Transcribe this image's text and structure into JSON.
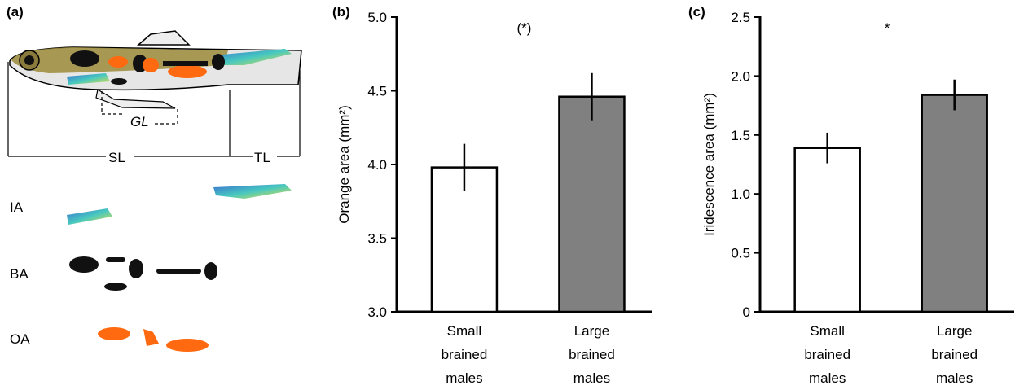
{
  "panel_a": {
    "label": "(a)",
    "gl": "GL",
    "sl": "SL",
    "tl": "TL",
    "ia": "IA",
    "ba": "BA",
    "oa": "OA"
  },
  "chart_data": [
    {
      "type": "bar",
      "panel_label": "(b)",
      "y_label": "Orange area (mm²)",
      "annotation": "(*)",
      "categories": [
        "Small brained males",
        "Large brained males"
      ],
      "values": [
        3.98,
        4.46
      ],
      "errors": [
        0.16,
        0.16
      ],
      "colors": [
        "#ffffff",
        "#808080"
      ],
      "ylim": [
        3.0,
        5.0
      ],
      "yticks": [
        {
          "value": 3,
          "label": "3.0"
        },
        3.5,
        {
          "value": 4,
          "label": "4.0"
        },
        4.5,
        {
          "value": 5,
          "label": "5.0"
        }
      ]
    },
    {
      "type": "bar",
      "panel_label": "(c)",
      "y_label": "Iridescence area (mm²)",
      "annotation": "*",
      "categories": [
        "Small brained males",
        "Large brained males"
      ],
      "values": [
        1.39,
        1.84
      ],
      "errors": [
        0.13,
        0.13
      ],
      "colors": [
        "#ffffff",
        "#808080"
      ],
      "ylim": [
        0,
        2.5
      ],
      "yticks": [
        0,
        0.5,
        {
          "value": 1,
          "label": "1.0"
        },
        1.5,
        {
          "value": 2,
          "label": "2.0"
        },
        2.5
      ]
    }
  ]
}
